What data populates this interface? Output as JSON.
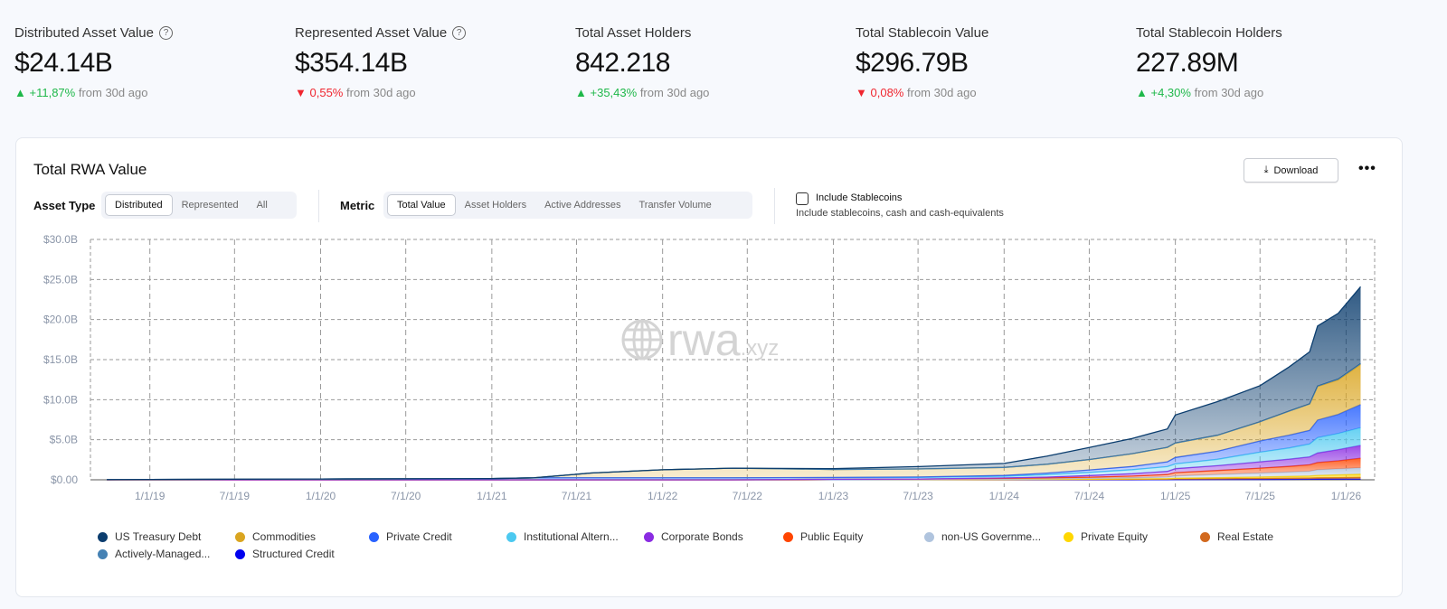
{
  "stats": [
    {
      "label": "Distributed Asset Value",
      "help": true,
      "value": "$24.14B",
      "direction": "up",
      "change": "+11,87%",
      "suffix": "from 30d ago"
    },
    {
      "label": "Represented Asset Value",
      "help": true,
      "value": "$354.14B",
      "direction": "down",
      "change": "0,55%",
      "suffix": "from 30d ago"
    },
    {
      "label": "Total Asset Holders",
      "help": false,
      "value": "842.218",
      "direction": "up",
      "change": "+35,43%",
      "suffix": "from 30d ago"
    },
    {
      "label": "Total Stablecoin Value",
      "help": false,
      "value": "$296.79B",
      "direction": "down",
      "change": "0,08%",
      "suffix": "from 30d ago"
    },
    {
      "label": "Total Stablecoin Holders",
      "help": false,
      "value": "227.89M",
      "direction": "up",
      "change": "+4,30%",
      "suffix": "from 30d ago"
    }
  ],
  "card": {
    "title": "Total RWA Value",
    "download_label": "Download",
    "more_label": "•••",
    "asset_type": {
      "label": "Asset Type",
      "options": [
        "Distributed",
        "Represented",
        "All"
      ],
      "selected": "Distributed"
    },
    "metric": {
      "label": "Metric",
      "options": [
        "Total Value",
        "Asset Holders",
        "Active Addresses",
        "Transfer Volume"
      ],
      "selected": "Total Value"
    },
    "stablecoins": {
      "label": "Include Stablecoins",
      "description": "Include stablecoins, cash and cash-equivalents",
      "checked": false
    },
    "watermark": {
      "main": "rwa",
      "suffix": ".xyz"
    }
  },
  "chart_data": {
    "type": "area",
    "stacked": true,
    "grid": true,
    "legend_position": "bottom",
    "ylim": [
      0,
      30
    ],
    "xlim": [
      "2018-08-27",
      "2026-03-03"
    ],
    "y_ticks": [
      "$0.00",
      "$5.0B",
      "$10.0B",
      "$15.0B",
      "$20.0B",
      "$25.0B",
      "$30.0B"
    ],
    "y_tick_values": [
      0,
      5,
      10,
      15,
      20,
      25,
      30
    ],
    "x_ticks": [
      "1/1/19",
      "7/1/19",
      "1/1/20",
      "7/1/20",
      "1/1/21",
      "7/1/21",
      "1/1/22",
      "7/1/22",
      "1/1/23",
      "7/1/23",
      "1/1/24",
      "7/1/24",
      "1/1/25",
      "7/1/25",
      "1/1/26"
    ],
    "x_tick_dates": [
      "2019-01-01",
      "2019-07-01",
      "2020-01-01",
      "2020-07-01",
      "2021-01-01",
      "2021-07-01",
      "2022-01-01",
      "2022-07-01",
      "2023-01-01",
      "2023-07-01",
      "2024-01-01",
      "2024-07-01",
      "2025-01-01",
      "2025-07-01",
      "2026-01-01"
    ],
    "unit": "USD billions",
    "x": [
      "2018-10-01",
      "2019-01-01",
      "2020-01-01",
      "2021-01-01",
      "2021-04-01",
      "2021-08-01",
      "2022-01-01",
      "2022-06-01",
      "2023-01-01",
      "2023-07-01",
      "2024-01-01",
      "2024-04-01",
      "2024-07-01",
      "2024-10-01",
      "2024-12-15",
      "2025-01-01",
      "2025-04-01",
      "2025-07-01",
      "2025-09-01",
      "2025-10-15",
      "2025-11-01",
      "2025-12-15",
      "2026-02-01"
    ],
    "series": [
      {
        "name": "Structured Credit",
        "color": "#0a0af0",
        "values": [
          0,
          0,
          0,
          0,
          0,
          0,
          0,
          0,
          0,
          0,
          0,
          0,
          0,
          0,
          0.02,
          0.03,
          0.04,
          0.05,
          0.06,
          0.07,
          0.08,
          0.09,
          0.1
        ]
      },
      {
        "name": "Real Estate",
        "color": "#d2691e",
        "values": [
          0,
          0,
          0,
          0,
          0,
          0,
          0,
          0,
          0.01,
          0.02,
          0.03,
          0.04,
          0.05,
          0.06,
          0.07,
          0.08,
          0.1,
          0.12,
          0.14,
          0.15,
          0.17,
          0.18,
          0.2
        ]
      },
      {
        "name": "Private Equity",
        "color": "#ffd400",
        "values": [
          0,
          0,
          0,
          0,
          0,
          0,
          0,
          0,
          0,
          0,
          0.01,
          0.02,
          0.03,
          0.05,
          0.06,
          0.08,
          0.12,
          0.18,
          0.22,
          0.25,
          0.3,
          0.35,
          0.4
        ]
      },
      {
        "name": "non-US Government Debt",
        "color": "#b0c4de",
        "values": [
          0,
          0,
          0,
          0,
          0,
          0,
          0,
          0,
          0.01,
          0.03,
          0.05,
          0.08,
          0.1,
          0.15,
          0.2,
          0.3,
          0.4,
          0.5,
          0.55,
          0.6,
          0.7,
          0.75,
          0.8
        ]
      },
      {
        "name": "Public Equity",
        "color": "#ff4500",
        "values": [
          0,
          0,
          0,
          0,
          0,
          0,
          0,
          0,
          0.05,
          0.05,
          0.1,
          0.1,
          0.15,
          0.2,
          0.3,
          0.4,
          0.5,
          0.6,
          0.7,
          0.8,
          0.9,
          1.0,
          1.2
        ]
      },
      {
        "name": "Corporate Bonds",
        "color": "#8a2be2",
        "values": [
          0,
          0,
          0,
          0,
          0,
          0,
          0,
          0,
          0,
          0,
          0.05,
          0.1,
          0.2,
          0.3,
          0.4,
          0.5,
          0.6,
          0.8,
          0.9,
          1.0,
          1.2,
          1.4,
          1.6
        ]
      },
      {
        "name": "Institutional Alternative Funds",
        "color": "#4cc9f0",
        "values": [
          0.02,
          0.05,
          0.1,
          0.15,
          0.25,
          0.25,
          0.25,
          0.25,
          0.2,
          0.2,
          0.2,
          0.3,
          0.4,
          0.5,
          0.6,
          0.6,
          0.8,
          1.2,
          1.4,
          1.6,
          1.9,
          2.0,
          2.2
        ]
      },
      {
        "name": "Private Credit",
        "color": "#2962ff",
        "values": [
          0,
          0,
          0,
          0,
          0,
          0,
          0,
          0,
          0.02,
          0.05,
          0.1,
          0.2,
          0.3,
          0.4,
          0.6,
          0.8,
          1.0,
          1.4,
          1.6,
          1.7,
          2.2,
          2.4,
          2.9
        ]
      },
      {
        "name": "Commodities",
        "color": "#daa520",
        "values": [
          0,
          0,
          0,
          0,
          0,
          0.6,
          1.0,
          1.2,
          1.0,
          1.0,
          1.0,
          1.1,
          1.3,
          1.6,
          1.8,
          1.8,
          2.0,
          2.4,
          3.0,
          3.3,
          4.2,
          4.3,
          5.0
        ]
      },
      {
        "name": "Actively-Managed Strategies",
        "color": "#4682b4",
        "values": [
          0,
          0,
          0,
          0,
          0,
          0,
          0,
          0,
          0,
          0,
          0,
          0,
          0,
          0,
          0,
          0,
          0,
          0,
          0,
          0,
          0.05,
          0.1,
          0.1
        ]
      },
      {
        "name": "US Treasury Debt",
        "color": "#0b3d6e",
        "values": [
          0,
          0,
          0,
          0,
          0,
          0,
          0,
          0,
          0.1,
          0.3,
          0.5,
          1.0,
          1.5,
          1.9,
          2.3,
          3.5,
          4.2,
          4.5,
          5.5,
          6.5,
          7.5,
          8.2,
          9.6
        ]
      }
    ],
    "legend": [
      {
        "label": "US Treasury Debt",
        "color": "#0b3d6e"
      },
      {
        "label": "Commodities",
        "color": "#daa520"
      },
      {
        "label": "Private Credit",
        "color": "#2962ff"
      },
      {
        "label": "Institutional Altern...",
        "color": "#4cc9f0"
      },
      {
        "label": "Corporate Bonds",
        "color": "#8a2be2"
      },
      {
        "label": "Public Equity",
        "color": "#ff4500"
      },
      {
        "label": "non-US Governme...",
        "color": "#b0c4de"
      },
      {
        "label": "Private Equity",
        "color": "#ffd700"
      },
      {
        "label": "Real Estate",
        "color": "#d2691e"
      },
      {
        "label": "Actively-Managed...",
        "color": "#4682b4"
      },
      {
        "label": "Structured Credit",
        "color": "#0000ee"
      }
    ]
  }
}
